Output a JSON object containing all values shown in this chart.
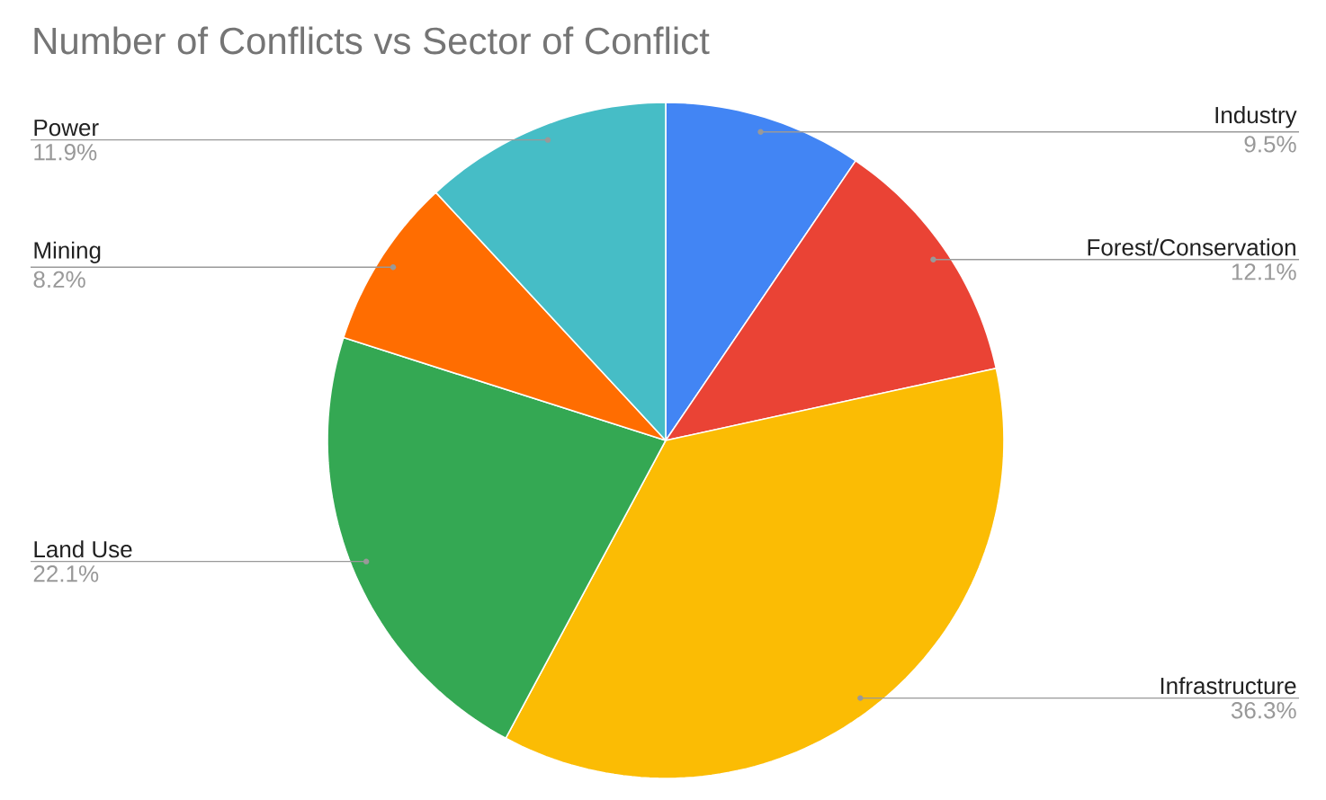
{
  "chart_data": {
    "type": "pie",
    "title": "Number of Conflicts vs Sector of Conflict",
    "categories": [
      "Industry",
      "Forest/Conservation",
      "Infrastructure",
      "Land Use",
      "Mining",
      "Power"
    ],
    "values": [
      9.5,
      12.1,
      36.3,
      22.1,
      8.2,
      11.9
    ],
    "value_labels": [
      "9.5%",
      "12.1%",
      "36.3%",
      "22.1%",
      "8.2%",
      "11.9%"
    ],
    "colors": [
      "#4285f4",
      "#ea4335",
      "#fbbc04",
      "#34a853",
      "#ff6d01",
      "#46bdc6"
    ]
  }
}
